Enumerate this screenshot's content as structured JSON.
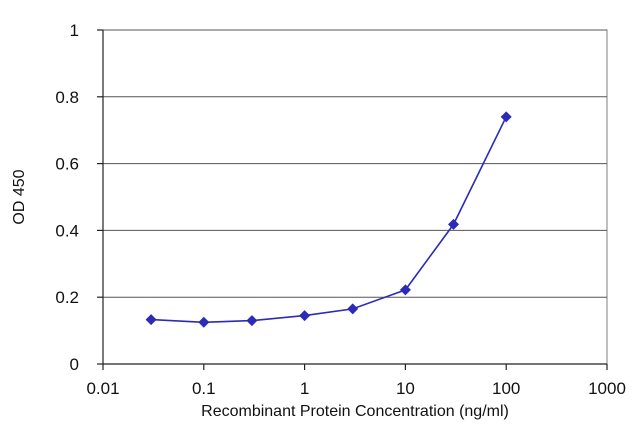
{
  "chart_data": {
    "type": "line",
    "title": "",
    "xlabel": "Recombinant Protein Concentration (ng/ml)",
    "ylabel": "OD 450",
    "x_scale": "log",
    "xlim": [
      0.01,
      1000
    ],
    "ylim": [
      0,
      1
    ],
    "x_ticks": [
      0.01,
      0.1,
      1,
      10,
      100,
      1000
    ],
    "x_tick_labels": [
      "0.01",
      "0.1",
      "1",
      "10",
      "100",
      "1000"
    ],
    "y_ticks": [
      0,
      0.2,
      0.4,
      0.6,
      0.8,
      1
    ],
    "y_tick_labels": [
      "0",
      "0.2",
      "0.4",
      "0.6",
      "0.8",
      "1"
    ],
    "grid": "horizontal",
    "legend": "none",
    "series": [
      {
        "color": "#2b2bb8",
        "marker": "diamond",
        "x": [
          0.03,
          0.1,
          0.3,
          1,
          3,
          10,
          30,
          100
        ],
        "y": [
          0.133,
          0.125,
          0.13,
          0.145,
          0.165,
          0.222,
          0.418,
          0.74
        ]
      }
    ]
  }
}
